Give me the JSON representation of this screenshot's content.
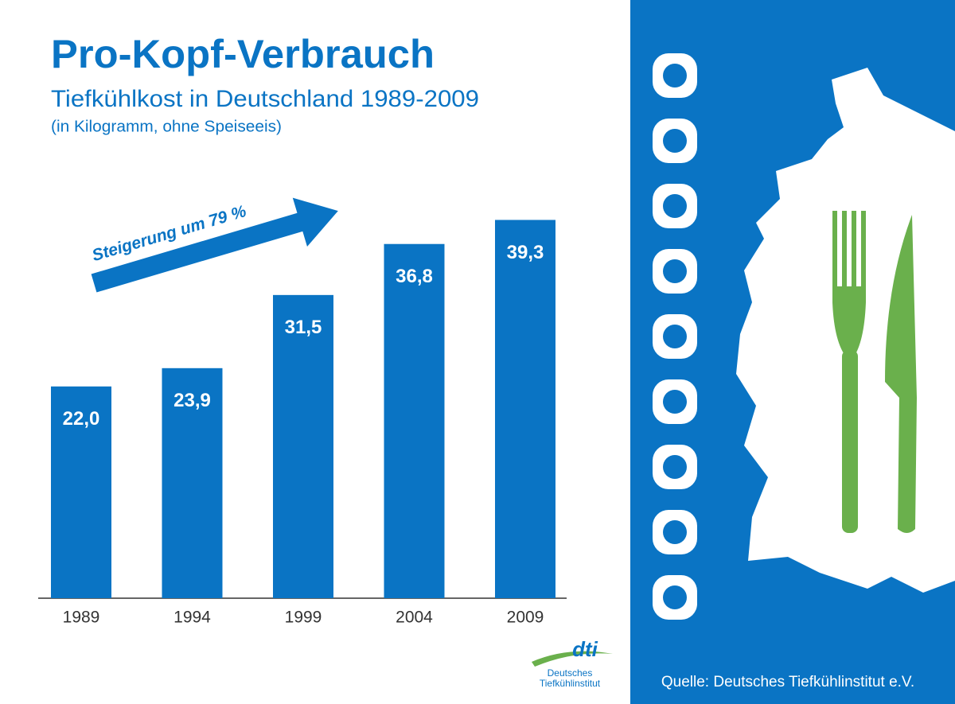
{
  "chart_data": {
    "type": "bar",
    "title": "Pro-Kopf-Verbrauch",
    "subtitle": "Tiefkühlkost in Deutschland 1989-2009",
    "note": "(in Kilogramm, ohne Speiseeis)",
    "annotation": "Steigerung um 79 %",
    "categories": [
      "1989",
      "1994",
      "1999",
      "2004",
      "2009"
    ],
    "values": [
      22.0,
      23.9,
      31.5,
      36.8,
      39.3
    ],
    "value_labels": [
      "22,0",
      "23,9",
      "31,5",
      "36,8",
      "39,3"
    ],
    "color": "#0a74c4",
    "source": "Quelle: Deutsches Tiefkühlinstitut e.V.",
    "logo": {
      "mark": "dti",
      "line1": "Deutsches",
      "line2": "Tiefkühlinstitut"
    }
  }
}
